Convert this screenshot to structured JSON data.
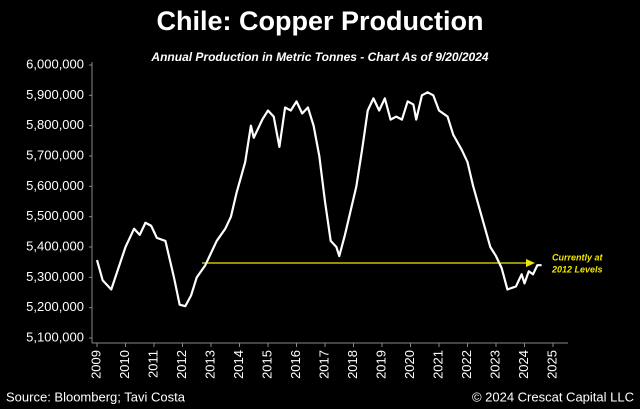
{
  "chart_data": {
    "type": "line",
    "title": "Chile: Copper Production",
    "subtitle": "Annual Production in Metric Tonnes - Chart As of 9/20/2024",
    "annotation": [
      "Currently at",
      "2012 Levels"
    ],
    "source": "Source: Bloomberg; Tavi Costa",
    "copyright": "© 2024 Crescat Capital LLC",
    "color": "#ffffff",
    "x": [
      2009.0,
      2009.2,
      2009.5,
      2010.0,
      2010.3,
      2010.5,
      2010.7,
      2010.9,
      2011.1,
      2011.4,
      2011.7,
      2011.9,
      2012.1,
      2012.3,
      2012.5,
      2012.8,
      2013.2,
      2013.5,
      2013.7,
      2013.9,
      2014.2,
      2014.4,
      2014.5,
      2014.8,
      2015.0,
      2015.2,
      2015.4,
      2015.6,
      2015.8,
      2016.0,
      2016.2,
      2016.4,
      2016.6,
      2016.8,
      2017.0,
      2017.2,
      2017.4,
      2017.5,
      2017.7,
      2017.9,
      2018.1,
      2018.3,
      2018.5,
      2018.7,
      2018.9,
      2019.1,
      2019.3,
      2019.5,
      2019.7,
      2019.9,
      2020.1,
      2020.2,
      2020.4,
      2020.6,
      2020.8,
      2021.0,
      2021.3,
      2021.5,
      2021.8,
      2022.0,
      2022.2,
      2022.5,
      2022.8,
      2023.0,
      2023.2,
      2023.4,
      2023.7,
      2023.9,
      2024.0,
      2024.15,
      2024.3,
      2024.45,
      2024.6
    ],
    "values": [
      5357000,
      5290000,
      5260000,
      5400000,
      5460000,
      5440000,
      5480000,
      5470000,
      5430000,
      5420000,
      5300000,
      5210000,
      5205000,
      5240000,
      5300000,
      5340000,
      5420000,
      5460000,
      5500000,
      5580000,
      5680000,
      5800000,
      5760000,
      5820000,
      5850000,
      5830000,
      5730000,
      5860000,
      5850000,
      5880000,
      5840000,
      5860000,
      5800000,
      5700000,
      5550000,
      5420000,
      5400000,
      5370000,
      5440000,
      5520000,
      5600000,
      5720000,
      5850000,
      5890000,
      5850000,
      5890000,
      5820000,
      5830000,
      5820000,
      5880000,
      5870000,
      5820000,
      5900000,
      5910000,
      5900000,
      5850000,
      5830000,
      5770000,
      5720000,
      5680000,
      5600000,
      5500000,
      5400000,
      5370000,
      5330000,
      5260000,
      5270000,
      5310000,
      5280000,
      5320000,
      5310000,
      5340000,
      5340000
    ],
    "xlim": [
      2009,
      2025
    ],
    "xticks": [
      2009,
      2010,
      2011,
      2012,
      2013,
      2014,
      2015,
      2016,
      2017,
      2018,
      2019,
      2020,
      2021,
      2022,
      2023,
      2024,
      2025
    ],
    "ylim": [
      5100000,
      6000000
    ],
    "yticks": [
      {
        "value": 5100000,
        "label": "5,100,000"
      },
      {
        "value": 5200000,
        "label": "5,200,000"
      },
      {
        "value": 5300000,
        "label": "5,300,000"
      },
      {
        "value": 5400000,
        "label": "5,400,000"
      },
      {
        "value": 5500000,
        "label": "5,500,000"
      },
      {
        "value": 5600000,
        "label": "5,600,000"
      },
      {
        "value": 5700000,
        "label": "5,700,000"
      },
      {
        "value": 5800000,
        "label": "5,800,000"
      },
      {
        "value": 5900000,
        "label": "5,900,000"
      },
      {
        "value": 6000000,
        "label": "6,000,000"
      }
    ],
    "grid": false
  }
}
